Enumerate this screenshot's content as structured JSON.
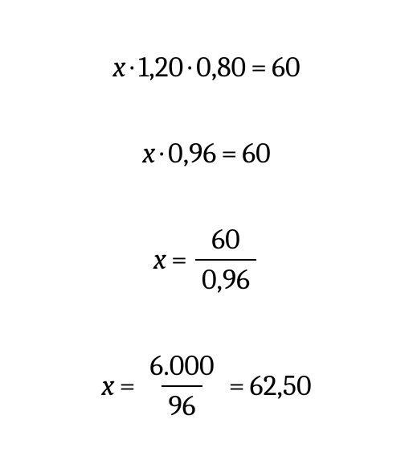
{
  "background_color": "#ffffff",
  "text_color": "#000000",
  "font_size": 36,
  "font_family": "Cambria, Georgia, serif",
  "fraction_bar_width": 2,
  "eq1": {
    "var": "x",
    "dot": "·",
    "n1": "1,20",
    "n2": "0,80",
    "eq": "=",
    "rhs": "60"
  },
  "eq2": {
    "var": "x",
    "dot": "·",
    "n1": "0,96",
    "eq": "=",
    "rhs": "60"
  },
  "eq3": {
    "var": "x",
    "eq": "=",
    "numr": "60",
    "den": "0,96"
  },
  "eq4": {
    "var": "x",
    "eq": "=",
    "numr": "6.000",
    "den": "96",
    "eq2": "=",
    "rhs": "62,50"
  }
}
